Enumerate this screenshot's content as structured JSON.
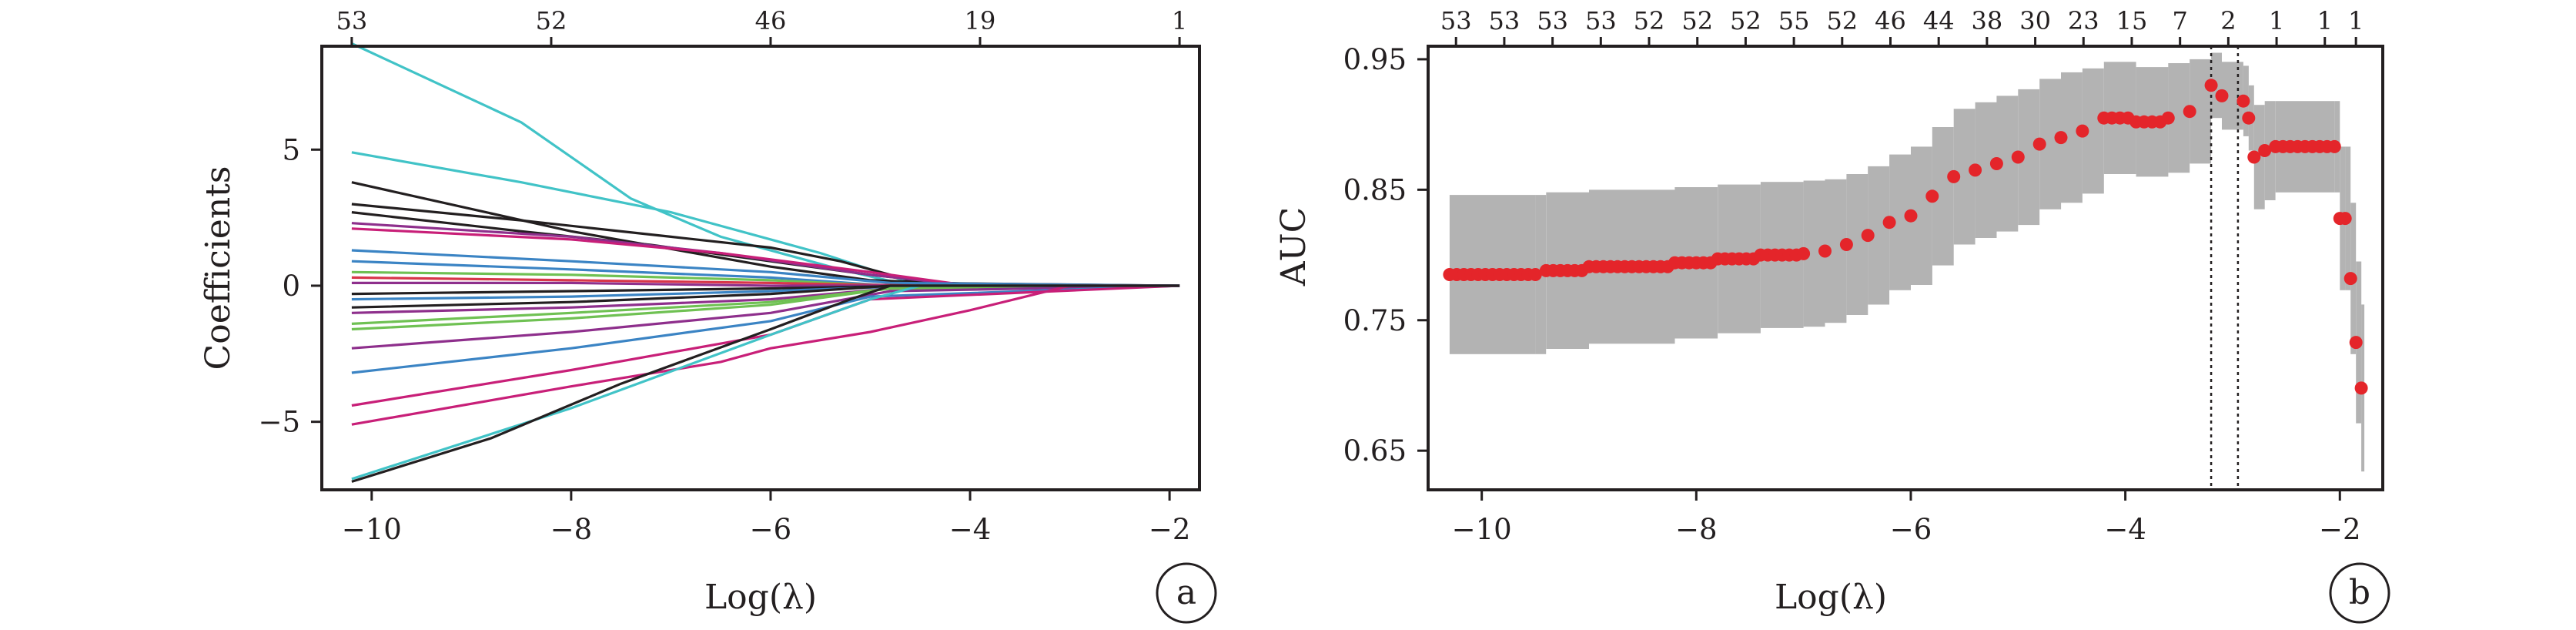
{
  "chart_data": [
    {
      "type": "line",
      "panel_label": "a",
      "xlabel": "Log(λ)",
      "ylabel": "Coefficients",
      "xlim": [
        -10.5,
        -1.7
      ],
      "ylim": [
        -7.5,
        8.8
      ],
      "x_ticks": [
        -10,
        -8,
        -6,
        -4,
        -2
      ],
      "x_tick_labels": [
        "−10",
        "−8",
        "−6",
        "−4",
        "−2"
      ],
      "y_ticks": [
        5,
        0,
        -5
      ],
      "y_tick_labels": [
        "5",
        "0",
        "−5"
      ],
      "top_axis": {
        "x": [
          -10.2,
          -8.2,
          -6.0,
          -3.9,
          -1.9
        ],
        "labels": [
          "53",
          "52",
          "46",
          "19",
          "1"
        ]
      },
      "grid": false,
      "legend": "none",
      "series": [
        {
          "color": "#41c3c7",
          "x": [
            -10.2,
            -8.5,
            -7.4,
            -6.5,
            -5.3,
            -4.6,
            -1.9
          ],
          "y": [
            8.9,
            6.0,
            3.2,
            1.8,
            0.6,
            0.0,
            0.0
          ]
        },
        {
          "color": "#41c3c7",
          "x": [
            -10.2,
            -8.5,
            -7.0,
            -5.5,
            -4.5,
            -1.9
          ],
          "y": [
            4.9,
            3.8,
            2.7,
            1.2,
            0.0,
            0.0
          ]
        },
        {
          "color": "#231f20",
          "x": [
            -10.2,
            -8.0,
            -6.0,
            -5.0,
            -3.5,
            -1.9
          ],
          "y": [
            3.8,
            2.0,
            0.7,
            0.2,
            0.0,
            0.0
          ]
        },
        {
          "color": "#231f20",
          "x": [
            -10.2,
            -8.5,
            -7.0,
            -6.0,
            -5.3,
            -4.5,
            -1.9
          ],
          "y": [
            3.0,
            2.4,
            1.8,
            1.4,
            0.9,
            0.1,
            0.0
          ]
        },
        {
          "color": "#231f20",
          "x": [
            -10.2,
            -8.5,
            -7.2,
            -6.0,
            -5.0,
            -4.0,
            -1.9
          ],
          "y": [
            2.7,
            2.0,
            1.5,
            0.9,
            0.4,
            0.0,
            0.0
          ]
        },
        {
          "color": "#8e2f8c",
          "x": [
            -10.2,
            -8.0,
            -6.5,
            -5.0,
            -4.0,
            -1.9
          ],
          "y": [
            2.3,
            1.8,
            1.2,
            0.4,
            0.0,
            0.0
          ]
        },
        {
          "color": "#c81f78",
          "x": [
            -10.2,
            -8.0,
            -6.5,
            -5.0,
            -4.0,
            -1.9
          ],
          "y": [
            2.1,
            1.7,
            1.2,
            0.5,
            0.0,
            0.0
          ]
        },
        {
          "color": "#3b84c4",
          "x": [
            -10.2,
            -8.0,
            -6.0,
            -4.8,
            -1.9
          ],
          "y": [
            1.3,
            0.9,
            0.5,
            0.1,
            0.0
          ]
        },
        {
          "color": "#3b84c4",
          "x": [
            -10.2,
            -8.0,
            -6.0,
            -4.8,
            -1.9
          ],
          "y": [
            0.9,
            0.6,
            0.3,
            0.0,
            0.0
          ]
        },
        {
          "color": "#6fc153",
          "x": [
            -10.2,
            -8.0,
            -6.0,
            -4.8,
            -1.9
          ],
          "y": [
            0.5,
            0.4,
            0.2,
            0.0,
            0.0
          ]
        },
        {
          "color": "#d8364a",
          "x": [
            -10.2,
            -8.0,
            -6.0,
            -4.5,
            -1.9
          ],
          "y": [
            0.3,
            0.2,
            0.1,
            0.0,
            0.0
          ]
        },
        {
          "color": "#8e2f8c",
          "x": [
            -10.2,
            -8.0,
            -6.0,
            -4.5,
            -1.9
          ],
          "y": [
            0.1,
            0.1,
            0.0,
            0.0,
            0.0
          ]
        },
        {
          "color": "#231f20",
          "x": [
            -10.2,
            -8.0,
            -6.0,
            -4.5,
            -1.9
          ],
          "y": [
            -0.3,
            -0.2,
            -0.1,
            0.0,
            0.0
          ]
        },
        {
          "color": "#3b84c4",
          "x": [
            -10.2,
            -8.0,
            -6.0,
            -4.5,
            -1.9
          ],
          "y": [
            -0.5,
            -0.4,
            -0.2,
            0.0,
            0.0
          ]
        },
        {
          "color": "#231f20",
          "x": [
            -10.2,
            -8.0,
            -6.0,
            -4.8,
            -1.9
          ],
          "y": [
            -0.8,
            -0.6,
            -0.3,
            0.0,
            0.0
          ]
        },
        {
          "color": "#8e2f8c",
          "x": [
            -10.2,
            -8.0,
            -6.0,
            -4.8,
            -1.9
          ],
          "y": [
            -1.0,
            -0.8,
            -0.5,
            -0.1,
            0.0
          ]
        },
        {
          "color": "#6fc153",
          "x": [
            -10.2,
            -8.0,
            -6.0,
            -4.8,
            -1.9
          ],
          "y": [
            -1.4,
            -1.0,
            -0.6,
            -0.1,
            0.0
          ]
        },
        {
          "color": "#6fc153",
          "x": [
            -10.2,
            -8.0,
            -6.0,
            -4.8,
            -1.9
          ],
          "y": [
            -1.6,
            -1.2,
            -0.7,
            -0.1,
            0.0
          ]
        },
        {
          "color": "#8e2f8c",
          "x": [
            -10.2,
            -8.0,
            -6.0,
            -4.8,
            -1.9
          ],
          "y": [
            -2.3,
            -1.7,
            -1.0,
            -0.2,
            0.0
          ]
        },
        {
          "color": "#3b84c4",
          "x": [
            -10.2,
            -8.0,
            -6.0,
            -5.0,
            -1.9
          ],
          "y": [
            -3.2,
            -2.3,
            -1.3,
            -0.4,
            0.0
          ]
        },
        {
          "color": "#c81f78",
          "x": [
            -10.2,
            -8.0,
            -6.0,
            -5.0,
            -1.9
          ],
          "y": [
            -4.4,
            -3.1,
            -1.8,
            -0.5,
            0.0
          ]
        },
        {
          "color": "#c81f78",
          "x": [
            -10.2,
            -8.0,
            -6.5,
            -6.0,
            -5.0,
            -4.0,
            -3.0,
            -1.9
          ],
          "y": [
            -5.1,
            -3.7,
            -2.8,
            -2.3,
            -1.7,
            -0.9,
            0.0,
            0.0
          ]
        },
        {
          "color": "#41c3c7",
          "x": [
            -10.2,
            -8.0,
            -6.0,
            -5.0,
            -4.5,
            -1.9
          ],
          "y": [
            -7.1,
            -4.5,
            -1.8,
            -0.5,
            0.0,
            0.0
          ]
        },
        {
          "color": "#231f20",
          "x": [
            -10.2,
            -8.8,
            -7.5,
            -6.0,
            -5.2,
            -4.8,
            -1.9
          ],
          "y": [
            -7.2,
            -5.6,
            -3.6,
            -1.6,
            -0.5,
            0.0,
            0.0
          ]
        }
      ]
    },
    {
      "type": "scatter",
      "panel_label": "b",
      "xlabel": "Log(λ)",
      "ylabel": "AUC",
      "xlim": [
        -10.5,
        -1.6
      ],
      "ylim": [
        0.62,
        0.96
      ],
      "x_ticks": [
        -10,
        -8,
        -6,
        -4,
        -2
      ],
      "x_tick_labels": [
        "−10",
        "−8",
        "−6",
        "−4",
        "−2"
      ],
      "y_ticks": [
        0.95,
        0.85,
        0.75,
        0.65
      ],
      "y_tick_labels": [
        "0.95",
        "0.85",
        "0.75",
        "0.65"
      ],
      "top_axis": {
        "x": [
          -10.24,
          -9.79,
          -9.34,
          -8.89,
          -8.44,
          -7.99,
          -7.54,
          -7.09,
          -6.64,
          -6.19,
          -5.74,
          -5.29,
          -4.84,
          -4.39,
          -3.94,
          -3.49,
          -3.04,
          -2.59,
          -2.14
        ],
        "labels": [
          "53",
          "53",
          "53",
          "53",
          "52",
          "52",
          "52",
          "55",
          "52",
          "46",
          "44",
          "38",
          "30",
          "23",
          "15",
          "7",
          "2",
          "1",
          "1"
        ]
      },
      "extra_top_label": {
        "x": -1.85,
        "label": "1"
      },
      "vlines": [
        -3.2,
        -2.95
      ],
      "grid": false,
      "legend": "none",
      "colors": {
        "points": "#e4252a",
        "error_bars": "#b3b3b3"
      },
      "points_x": [
        -10.3,
        -9.5,
        -9.4,
        -9.0,
        -8.2,
        -7.8,
        -7.4,
        -7.0,
        -6.8,
        -6.6,
        -6.4,
        -6.2,
        -6.0,
        -5.8,
        -5.6,
        -5.4,
        -5.2,
        -5.0,
        -4.8,
        -4.6,
        -4.4,
        -4.2,
        -3.9,
        -3.6,
        -3.4,
        -3.2,
        -3.1,
        -2.9,
        -2.85,
        -2.8,
        -2.7,
        -2.6,
        -2.05,
        -2.0,
        -1.95,
        -1.9,
        -1.85,
        -1.8
      ],
      "points_y": [
        0.785,
        0.785,
        0.788,
        0.791,
        0.794,
        0.797,
        0.8,
        0.801,
        0.803,
        0.808,
        0.815,
        0.825,
        0.83,
        0.845,
        0.86,
        0.865,
        0.87,
        0.875,
        0.885,
        0.89,
        0.895,
        0.905,
        0.902,
        0.905,
        0.91,
        0.93,
        0.922,
        0.918,
        0.905,
        0.875,
        0.88,
        0.883,
        0.883,
        0.828,
        0.828,
        0.782,
        0.733,
        0.698
      ],
      "error_upper": [
        0.846,
        0.846,
        0.848,
        0.85,
        0.852,
        0.854,
        0.856,
        0.857,
        0.858,
        0.862,
        0.868,
        0.877,
        0.883,
        0.898,
        0.912,
        0.917,
        0.922,
        0.927,
        0.935,
        0.94,
        0.943,
        0.948,
        0.944,
        0.947,
        0.95,
        0.955,
        0.948,
        0.945,
        0.93,
        0.915,
        0.918,
        0.918,
        0.918,
        0.883,
        0.883,
        0.84,
        0.795,
        0.762
      ],
      "error_lower": [
        0.724,
        0.724,
        0.728,
        0.732,
        0.736,
        0.74,
        0.744,
        0.745,
        0.748,
        0.754,
        0.762,
        0.773,
        0.777,
        0.792,
        0.808,
        0.813,
        0.818,
        0.823,
        0.835,
        0.84,
        0.847,
        0.862,
        0.86,
        0.863,
        0.87,
        0.905,
        0.896,
        0.891,
        0.88,
        0.835,
        0.842,
        0.848,
        0.848,
        0.773,
        0.773,
        0.724,
        0.671,
        0.634
      ]
    }
  ]
}
